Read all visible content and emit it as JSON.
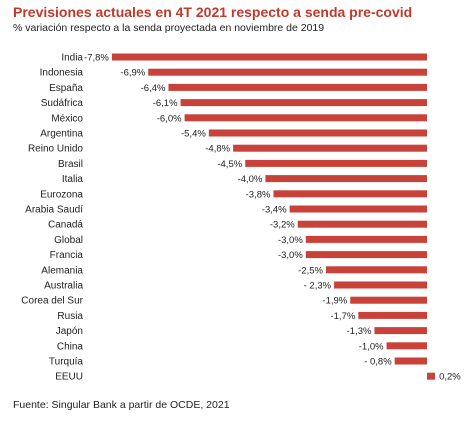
{
  "chart_data": {
    "type": "bar",
    "orientation": "horizontal",
    "title": "Previsiones actuales en 4T 2021 respecto a senda pre-covid",
    "subtitle": "% variación respecto a la senda proyectada en noviembre de 2019",
    "source": "Fuente: Singular Bank a partir de OCDE, 2021",
    "bar_color": "#c9423a",
    "categories": [
      "India",
      "Indonesia",
      "España",
      "Sudáfrica",
      "México",
      "Argentina",
      "Reino Unido",
      "Brasil",
      "Italia",
      "Eurozona",
      "Arabia Saudí",
      "Canadá",
      "Global",
      "Francia",
      "Alemania",
      "Australia",
      "Corea del Sur",
      "Rusia",
      "Japón",
      "China",
      "Turquía",
      "EEUU"
    ],
    "values": [
      -7.8,
      -6.9,
      -6.4,
      -6.1,
      -6.0,
      -5.4,
      -4.8,
      -4.5,
      -4.0,
      -3.8,
      -3.4,
      -3.2,
      -3.0,
      -3.0,
      -2.5,
      -2.3,
      -1.9,
      -1.7,
      -1.3,
      -1.0,
      -0.8,
      0.2
    ],
    "value_labels": [
      "-7,8%",
      "-6,9%",
      "-6,4%",
      "-6,1%",
      "-6,0%",
      "-5,4%",
      "-4,8%",
      "-4,5%",
      "-4,0%",
      "-3,8%",
      "-3,4%",
      "-3,2%",
      "-3,0%",
      "-3,0%",
      "-2,5%",
      "- 2,3%",
      "-1,9%",
      "-1,7%",
      "-1,3%",
      "-1,0%",
      "- 0,8%",
      "0,2%"
    ],
    "grid": false,
    "legend": "none"
  }
}
